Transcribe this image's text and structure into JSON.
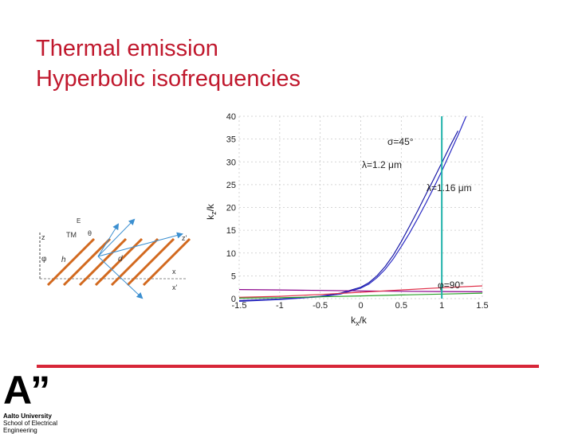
{
  "slide": {
    "title_line1": "Thermal emission",
    "title_line2": "Hyperbolic isofrequencies",
    "accent_color": "#d72638",
    "title_color": "#c0182d"
  },
  "logo": {
    "mark": "A”",
    "line1": "Aalto University",
    "line2": "School of Electrical",
    "line3": "Engineering"
  },
  "diagram": {
    "labels": {
      "z": "z",
      "z_prime": "z'",
      "x": "x",
      "x_prime": "x'",
      "phi": "φ",
      "h": "h",
      "d": "d",
      "tm": "TM",
      "theta": "θ",
      "e": "E"
    },
    "strip_color": "#d2691e",
    "arrow_color": "#3b8fd0"
  },
  "chart_data": {
    "type": "line",
    "xlabel": "k",
    "xlabel_sub": "x",
    "xlabel_suffix": "/k",
    "ylabel": "k",
    "ylabel_sub": "z",
    "ylabel_suffix": "/k",
    "xlim": [
      -1.5,
      1.5
    ],
    "ylim": [
      0,
      40
    ],
    "xticks": [
      "-1.5",
      "-1",
      "-0.5",
      "0",
      "0.5",
      "1",
      "1.5"
    ],
    "xtick_values": [
      -1.5,
      -1,
      -0.5,
      0,
      0.5,
      1,
      1.5
    ],
    "yticks": [
      "0",
      "5",
      "10",
      "15",
      "20",
      "25",
      "30",
      "35",
      "40"
    ],
    "ytick_values": [
      0,
      5,
      10,
      15,
      20,
      25,
      30,
      35,
      40
    ],
    "grid": true,
    "annotations": {
      "sigma": "σ=45°",
      "lambda1": "λ=1.2 μm",
      "lambda2": "λ=1.16 μm",
      "phi": "φ=90°"
    },
    "series": [
      {
        "color": "#1a1aa8",
        "x": [
          -1.5,
          -1.0,
          -0.5,
          -0.25,
          0,
          0.1,
          0.2,
          0.3,
          0.4,
          0.5,
          0.6,
          0.7,
          0.8,
          0.9,
          1.0,
          1.1,
          1.2
        ],
        "y": [
          -0.4,
          -0.1,
          0.5,
          1.2,
          2.5,
          3.5,
          5.0,
          7.0,
          9.5,
          12.5,
          15.8,
          19.2,
          22.7,
          26.2,
          29.8,
          33.4,
          36.8
        ]
      },
      {
        "color": "#2b2bc4",
        "x": [
          -1.5,
          -1.0,
          -0.5,
          -0.25,
          0,
          0.1,
          0.2,
          0.3,
          0.4,
          0.5,
          0.6,
          0.7,
          0.8,
          0.9,
          1.0,
          1.1,
          1.2,
          1.3
        ],
        "y": [
          -0.6,
          -0.2,
          0.4,
          1.0,
          2.3,
          3.2,
          4.6,
          6.4,
          8.7,
          11.4,
          14.3,
          17.5,
          20.8,
          24.3,
          28.0,
          31.9,
          35.8,
          40.0
        ]
      },
      {
        "color": "#8b008b",
        "x": [
          -1.5,
          -1.0,
          -0.5,
          0,
          0.5,
          1.0,
          1.5
        ],
        "y": [
          2.0,
          1.9,
          1.8,
          1.7,
          1.6,
          1.55,
          1.5
        ]
      },
      {
        "color": "#e0304a",
        "x": [
          -1.5,
          -1.0,
          -0.5,
          0,
          0.5,
          1.0,
          1.5
        ],
        "y": [
          0.3,
          0.5,
          0.9,
          1.4,
          1.9,
          2.4,
          2.8
        ]
      },
      {
        "color": "#2aa02a",
        "x": [
          -1.5,
          -1.0,
          -0.5,
          0,
          0.5,
          1.0,
          1.5
        ],
        "y": [
          0.1,
          0.2,
          0.4,
          0.6,
          0.8,
          1.0,
          1.2
        ]
      }
    ],
    "vertical_line": {
      "x": 1.0,
      "color": "#20b2aa"
    }
  }
}
